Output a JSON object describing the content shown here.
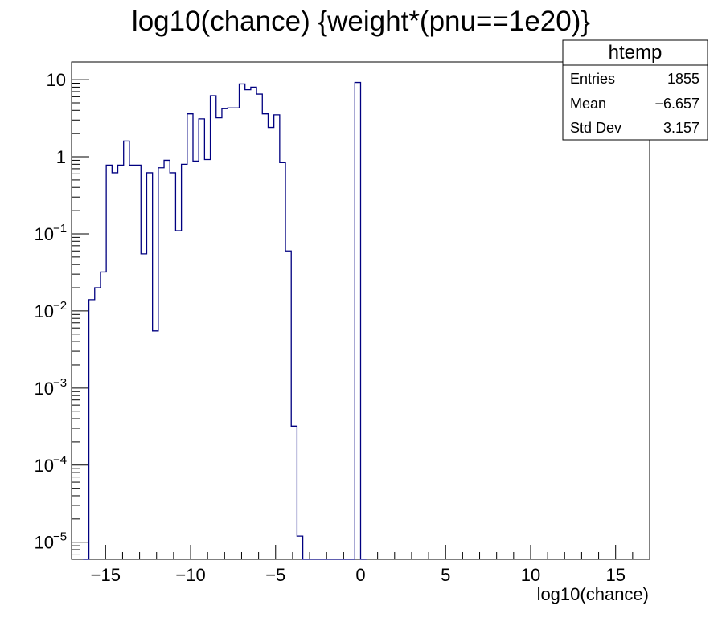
{
  "chart_data": {
    "type": "bar",
    "title": "log10(chance) {weight*(pnu==1e20)}",
    "xlabel": "log10(chance)",
    "ylabel": "",
    "xlim": [
      -17,
      17
    ],
    "ylim": [
      6e-06,
      17
    ],
    "ylog": true,
    "grid": false,
    "line_color": "#000080",
    "bin_width": 0.34,
    "bin_start": -16.32,
    "xticks": [
      {
        "value": -15,
        "label": "−15"
      },
      {
        "value": -10,
        "label": "−10"
      },
      {
        "value": -5,
        "label": "−5"
      },
      {
        "value": 0,
        "label": "0"
      },
      {
        "value": 5,
        "label": "5"
      },
      {
        "value": 10,
        "label": "10"
      },
      {
        "value": 15,
        "label": "15"
      }
    ],
    "yticks": [
      {
        "value": 10,
        "base": "10",
        "exp": ""
      },
      {
        "value": 1,
        "base": "1",
        "exp": ""
      },
      {
        "value": 0.1,
        "base": "10",
        "exp": "−1"
      },
      {
        "value": 0.01,
        "base": "10",
        "exp": "−2"
      },
      {
        "value": 0.001,
        "base": "10",
        "exp": "−3"
      },
      {
        "value": 0.0001,
        "base": "10",
        "exp": "−4"
      },
      {
        "value": 1e-05,
        "base": "10",
        "exp": "−5"
      }
    ],
    "values": [
      0,
      0.014,
      0.02,
      0.032,
      0.78,
      0.62,
      0.78,
      1.6,
      0.78,
      0.78,
      0.055,
      0.62,
      0.0055,
      0.72,
      0.9,
      0.62,
      0.11,
      0.8,
      3.6,
      0.88,
      3.1,
      0.92,
      6.2,
      3.2,
      4.2,
      4.3,
      4.3,
      8.8,
      7.4,
      8.0,
      6.5,
      3.6,
      2.4,
      3.5,
      0.84,
      0.06,
      0.00032,
      1.2e-05,
      0,
      0,
      0,
      0,
      0,
      0,
      0,
      0,
      0,
      9.2,
      0
    ],
    "stats": {
      "title": "htemp",
      "rows": [
        {
          "label": "Entries",
          "value": "1855"
        },
        {
          "label": "Mean",
          "value": "−6.657"
        },
        {
          "label": "Std Dev",
          "value": "3.157"
        }
      ]
    }
  }
}
